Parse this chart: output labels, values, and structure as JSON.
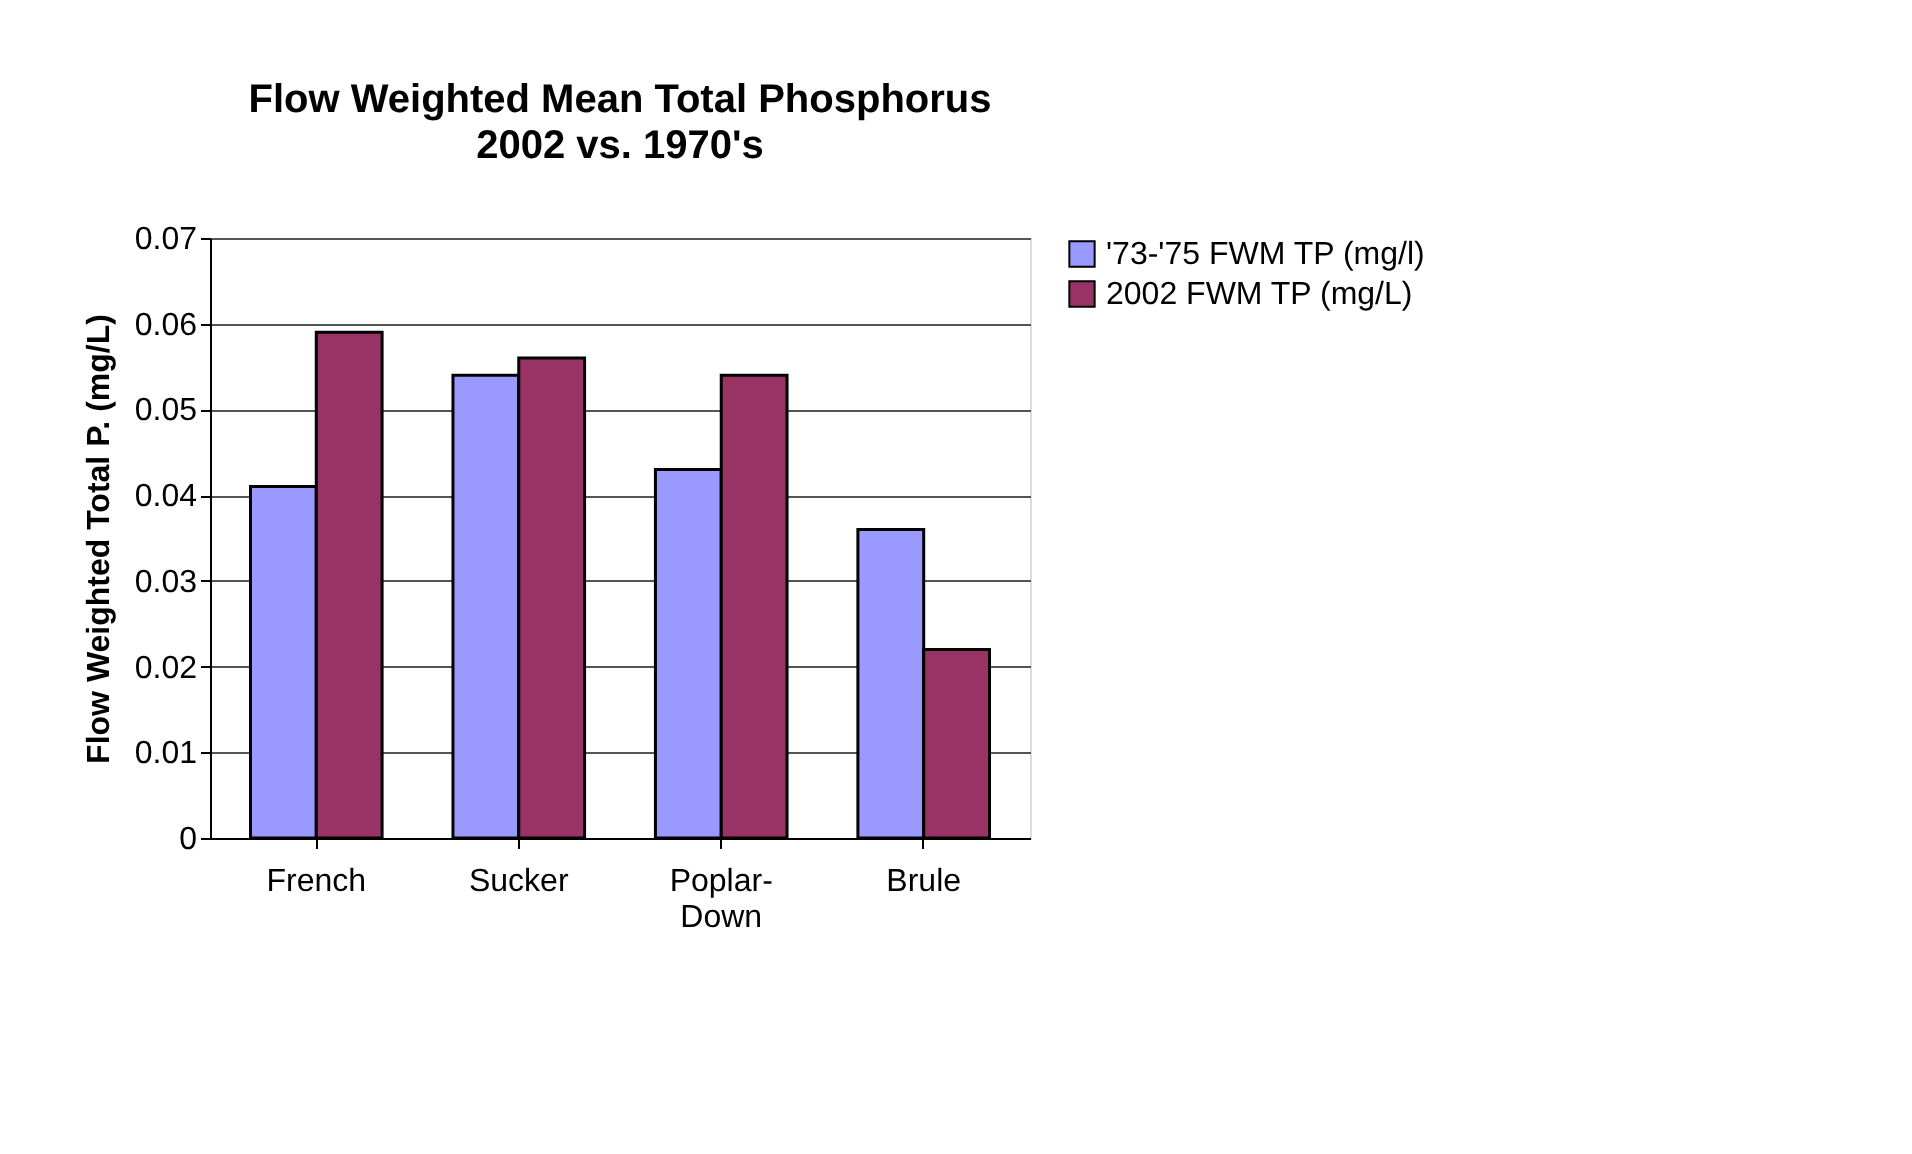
{
  "chart_data": {
    "type": "bar",
    "title": "Flow Weighted Mean Total Phosphorus",
    "subtitle": "2002 vs. 1970's",
    "ylabel": "Flow Weighted Total P.  (mg/L)",
    "categories": [
      "French",
      "Sucker",
      "Poplar-Down",
      "Brule"
    ],
    "series": [
      {
        "name": "'73-'75 FWM TP (mg/l)",
        "color": "#9999ff",
        "values": [
          0.041,
          0.054,
          0.043,
          0.036
        ]
      },
      {
        "name": "2002 FWM TP (mg/L)",
        "color": "#993366",
        "values": [
          0.059,
          0.056,
          0.054,
          0.022
        ]
      }
    ],
    "ylim": [
      0,
      0.07
    ],
    "yticks": [
      0,
      0.01,
      0.02,
      0.03,
      0.04,
      0.05,
      0.06,
      0.07
    ],
    "grid": "y",
    "legend": "right"
  }
}
